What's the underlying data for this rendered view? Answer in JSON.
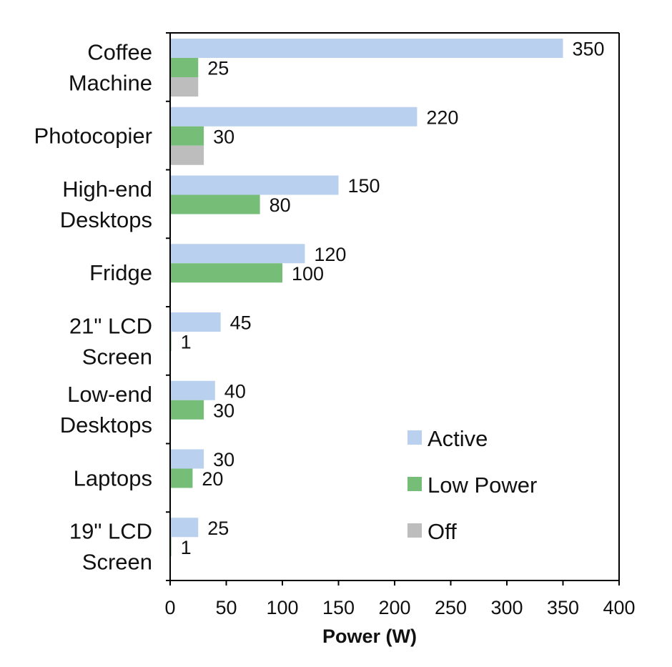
{
  "chart_data": {
    "type": "bar",
    "orientation": "horizontal",
    "categories": [
      [
        "Coffee",
        "Machine"
      ],
      [
        "Photocopier"
      ],
      [
        "High-end",
        "Desktops"
      ],
      [
        "Fridge"
      ],
      [
        "21\" LCD",
        "Screen"
      ],
      [
        "Low-end",
        "Desktops"
      ],
      [
        "Laptops"
      ],
      [
        "19\" LCD",
        "Screen"
      ]
    ],
    "series": [
      {
        "name": "Active",
        "color": "#b9d0ee",
        "values": [
          350,
          220,
          150,
          120,
          45,
          40,
          30,
          25
        ],
        "labels": [
          "350",
          "220",
          "150",
          "120",
          "45",
          "40",
          "30",
          "25"
        ]
      },
      {
        "name": "Low Power",
        "color": "#76bd78",
        "values": [
          25,
          30,
          80,
          100,
          1,
          30,
          20,
          1
        ],
        "labels": [
          "25",
          "30",
          "80",
          "100",
          "1",
          "30",
          "20",
          "1"
        ]
      },
      {
        "name": "Off",
        "color": "#bdbdbd",
        "values": [
          25,
          30,
          null,
          null,
          null,
          null,
          null,
          null
        ],
        "labels": []
      }
    ],
    "xlabel": "Power (W)",
    "ylabel": "",
    "xlim": [
      0,
      400
    ],
    "xticks": [
      "0",
      "50",
      "100",
      "150",
      "200",
      "250",
      "300",
      "350",
      "400"
    ],
    "grid": false,
    "legend_position": "bottom-right"
  }
}
